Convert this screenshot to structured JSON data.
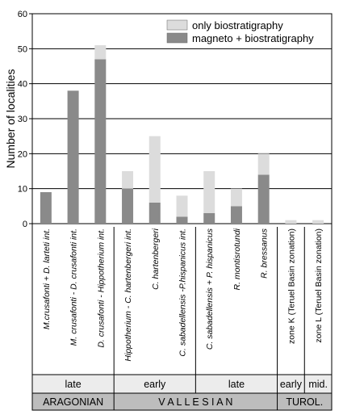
{
  "chart_data": {
    "type": "bar",
    "stacked": true,
    "ylabel": "Number of localities",
    "ylim": [
      0,
      60
    ],
    "yticks": [
      0,
      10,
      20,
      30,
      40,
      50,
      60
    ],
    "grid": true,
    "legend_position": "top-right",
    "categories": [
      "M.crusafonti + D. larteti int.",
      "M. crusafonti - D. crusafonti int.",
      "D. crusafonti - Hippotherium int.",
      "Hippotherium - C. hartenbergeri int.",
      "C. hartenbergeri",
      "C. sabadellensis -P.hispanicus int.",
      "C. sabadellensis + P. hispanicus",
      "R. montisrotundi",
      "R. bressanus",
      "zone K (Teruel Basin zonation)",
      "zone L (Teruel Basin zonation)"
    ],
    "category_italic": [
      true,
      true,
      true,
      true,
      true,
      true,
      true,
      true,
      true,
      false,
      false
    ],
    "series": [
      {
        "name": "magneto + biostratigraphy",
        "color": "#8a8a8a",
        "values": [
          9,
          38,
          47,
          10,
          6,
          2,
          3,
          5,
          14,
          0,
          0
        ]
      },
      {
        "name": "only biostratigraphy",
        "color": "#dcdcdc",
        "values": [
          0,
          0,
          4,
          5,
          19,
          6,
          12,
          5,
          6,
          1,
          1
        ]
      }
    ],
    "period_rows": {
      "subdivisions": [
        {
          "label": "late",
          "span": [
            0,
            3
          ]
        },
        {
          "label": "early",
          "span": [
            3,
            6
          ]
        },
        {
          "label": "late",
          "span": [
            6,
            9
          ]
        },
        {
          "label": "early",
          "span": [
            9,
            10
          ]
        },
        {
          "label": "mid.",
          "span": [
            10,
            11
          ]
        }
      ],
      "stages": [
        {
          "label": "ARAGONIAN",
          "span": [
            0,
            3
          ]
        },
        {
          "label": "V A L L E S I A N",
          "span": [
            3,
            9
          ]
        },
        {
          "label": "TUROL.",
          "span": [
            9,
            11
          ]
        }
      ]
    }
  }
}
